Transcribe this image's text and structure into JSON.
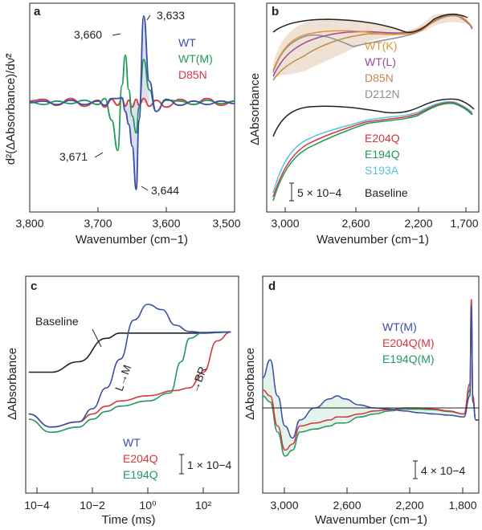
{
  "chart_data": [
    {
      "panel": "a",
      "type": "line",
      "xlabel": "Wavenumber (cm−1)",
      "ylabel": "d²(ΔAbsorbance)/dν̃²",
      "xlim": [
        3800,
        3500
      ],
      "xticks": [
        "3,800",
        "3,700",
        "3,600",
        "3,500"
      ],
      "series": [
        {
          "name": "WT",
          "color": "#3a4ea6",
          "x": [
            3800,
            3780,
            3760,
            3740,
            3720,
            3700,
            3690,
            3680,
            3671,
            3665,
            3660,
            3655,
            3650,
            3644,
            3640,
            3633,
            3625,
            3615,
            3600,
            3580,
            3560,
            3540,
            3520,
            3500
          ],
          "y": [
            0,
            0.02,
            -0.02,
            0.03,
            -0.02,
            0.02,
            -0.03,
            0.05,
            0.05,
            0.06,
            -0.1,
            -0.25,
            -0.5,
            -1.0,
            -0.2,
            1.0,
            0.25,
            -0.1,
            0.04,
            -0.03,
            0.02,
            -0.02,
            0.02,
            -0.01
          ]
        },
        {
          "name": "WT(M)",
          "color": "#1f9a5a",
          "x": [
            3800,
            3780,
            3760,
            3740,
            3720,
            3700,
            3690,
            3680,
            3671,
            3665,
            3660,
            3655,
            3650,
            3644,
            3640,
            3633,
            3625,
            3615,
            3600,
            3580,
            3560,
            3540,
            3520,
            3500
          ],
          "y": [
            0.01,
            -0.02,
            0.02,
            -0.01,
            0.03,
            -0.02,
            0.05,
            -0.2,
            -0.55,
            0.2,
            0.55,
            0.15,
            -0.15,
            -0.35,
            -0.05,
            0.5,
            0.15,
            -0.1,
            0.03,
            0.02,
            -0.02,
            0.03,
            -0.01,
            0.02
          ]
        },
        {
          "name": "D85N",
          "color": "#d9363e",
          "x": [
            3800,
            3780,
            3760,
            3740,
            3720,
            3700,
            3690,
            3680,
            3671,
            3665,
            3660,
            3655,
            3650,
            3644,
            3640,
            3633,
            3625,
            3615,
            3600,
            3580,
            3560,
            3540,
            3520,
            3500
          ],
          "y": [
            0.02,
            0.04,
            -0.03,
            0.05,
            -0.04,
            0.03,
            -0.05,
            0.04,
            -0.03,
            0.05,
            -0.04,
            0.03,
            -0.05,
            0.04,
            -0.03,
            0.05,
            -0.04,
            0.03,
            -0.05,
            0.04,
            -0.02,
            0.05,
            -0.03,
            0.02
          ]
        }
      ],
      "annotations": [
        "3,633",
        "3,660",
        "3,671",
        "3,644"
      ]
    },
    {
      "panel": "b",
      "type": "line",
      "xlabel": "Wavenumber (cm−1)",
      "ylabel": "ΔAbsorbance",
      "xlim": [
        3100,
        1700
      ],
      "xticks": [
        "3,000",
        "2,600",
        "2,200",
        "1,700"
      ],
      "scale_bar": "5 × 10−4",
      "legend_upper": [
        {
          "name": "WT(K)",
          "color": "#e3913a"
        },
        {
          "name": "WT(L)",
          "color": "#9a4a9a"
        },
        {
          "name": "D85N",
          "color": "#c08a52"
        },
        {
          "name": "D212N",
          "color": "#8a8f99"
        }
      ],
      "legend_lower": [
        {
          "name": "E204Q",
          "color": "#d9363e"
        },
        {
          "name": "E194Q",
          "color": "#1f9a5a"
        },
        {
          "name": "S193A",
          "color": "#57c2dd"
        },
        {
          "name": "Baseline",
          "color": "#222222"
        }
      ]
    },
    {
      "panel": "c",
      "type": "line",
      "xlabel": "Time (ms)",
      "ylabel": "ΔAbsorbance",
      "xscale": "log",
      "xticks": [
        "10−4",
        "10−2",
        "10⁰",
        "10²"
      ],
      "scale_bar": "1 × 10−4",
      "annotations": [
        "L→M",
        "→BR"
      ],
      "series": [
        {
          "name": "Baseline",
          "color": "#222222",
          "x": [
            -4.3,
            -3.5,
            -2.5,
            -1.5,
            -1,
            0,
            1,
            2,
            3
          ],
          "y": [
            0.1,
            0.1,
            0.3,
            0.75,
            0.85,
            0.85,
            0.85,
            0.85,
            0.87
          ]
        },
        {
          "name": "WT",
          "color": "#3a4ea6",
          "x": [
            -4.3,
            -3.5,
            -2.5,
            -2,
            -1.5,
            -1,
            -0.5,
            0,
            0.5,
            1,
            1.5,
            2,
            2.5,
            3
          ],
          "y": [
            -0.7,
            -0.95,
            -0.85,
            -0.6,
            -0.2,
            0.35,
            1.1,
            1.4,
            1.3,
            1.0,
            0.88,
            0.86,
            0.86,
            0.87
          ]
        },
        {
          "name": "E204Q",
          "color": "#d9363e",
          "x": [
            -4.3,
            -3.5,
            -2.5,
            -2,
            -1.5,
            -1,
            0,
            1,
            1.5,
            2,
            2.5,
            3
          ],
          "y": [
            -0.7,
            -0.95,
            -0.85,
            -0.7,
            -0.55,
            -0.45,
            -0.35,
            -0.25,
            -0.2,
            0.1,
            0.7,
            0.87
          ]
        },
        {
          "name": "E194Q",
          "color": "#1f9a5a",
          "x": [
            -4.3,
            -3.5,
            -2.5,
            -2,
            -1.5,
            -1,
            0,
            0.8,
            1.2,
            1.5,
            2,
            2.5,
            3
          ],
          "y": [
            -0.8,
            -1.05,
            -0.95,
            -0.8,
            -0.65,
            -0.55,
            -0.45,
            -0.3,
            0.3,
            0.75,
            0.86,
            0.87,
            0.87
          ]
        }
      ]
    },
    {
      "panel": "d",
      "type": "line",
      "xlabel": "Wavenumber (cm−1)",
      "ylabel": "ΔAbsorbance",
      "xlim": [
        3150,
        1700
      ],
      "xticks": [
        "3,000",
        "2,600",
        "2,200",
        "1,800"
      ],
      "scale_bar": "4 × 10−4",
      "series": [
        {
          "name": "WT(M)",
          "color": "#3a4ea6",
          "x": [
            3150,
            3100,
            3050,
            3000,
            2950,
            2900,
            2800,
            2700,
            2650,
            2600,
            2500,
            2400,
            2300,
            2200,
            2100,
            2000,
            1900,
            1800,
            1760,
            1750,
            1740,
            1720,
            1700
          ],
          "y": [
            0.5,
            0.8,
            0.2,
            -0.3,
            -0.5,
            -0.2,
            0.0,
            0.15,
            0.2,
            0.15,
            0.05,
            0.0,
            -0.02,
            -0.05,
            -0.08,
            -0.1,
            -0.12,
            -0.15,
            0.2,
            1.7,
            0.1,
            -0.2,
            -0.2
          ]
        },
        {
          "name": "E204Q(M)",
          "color": "#d9363e",
          "x": [
            3150,
            3100,
            3050,
            3000,
            2950,
            2900,
            2800,
            2700,
            2650,
            2600,
            2500,
            2400,
            2300,
            2200,
            2100,
            2000,
            1900,
            1800,
            1760,
            1750,
            1740,
            1720,
            1700
          ],
          "y": [
            0.3,
            0.2,
            -0.3,
            -0.7,
            -0.6,
            -0.3,
            -0.25,
            -0.2,
            -0.15,
            -0.15,
            -0.1,
            -0.05,
            -0.03,
            0.0,
            0.0,
            -0.02,
            -0.05,
            -0.1,
            0.4,
            1.8,
            0.2,
            -0.2,
            -0.2
          ]
        },
        {
          "name": "E194Q(M)",
          "color": "#1f9a5a",
          "x": [
            3150,
            3100,
            3050,
            3000,
            2950,
            2900,
            2800,
            2700,
            2650,
            2600,
            2500,
            2400,
            2300,
            2200,
            2100,
            2000,
            1900,
            1800,
            1760,
            1750,
            1740,
            1720,
            1700
          ],
          "y": [
            0.2,
            0.1,
            -0.4,
            -0.8,
            -0.7,
            -0.4,
            -0.35,
            -0.3,
            -0.25,
            -0.25,
            -0.15,
            -0.1,
            -0.05,
            -0.02,
            -0.02,
            -0.03,
            -0.06,
            -0.1,
            0.3,
            1.5,
            0.15,
            -0.2,
            -0.2
          ]
        }
      ]
    }
  ]
}
